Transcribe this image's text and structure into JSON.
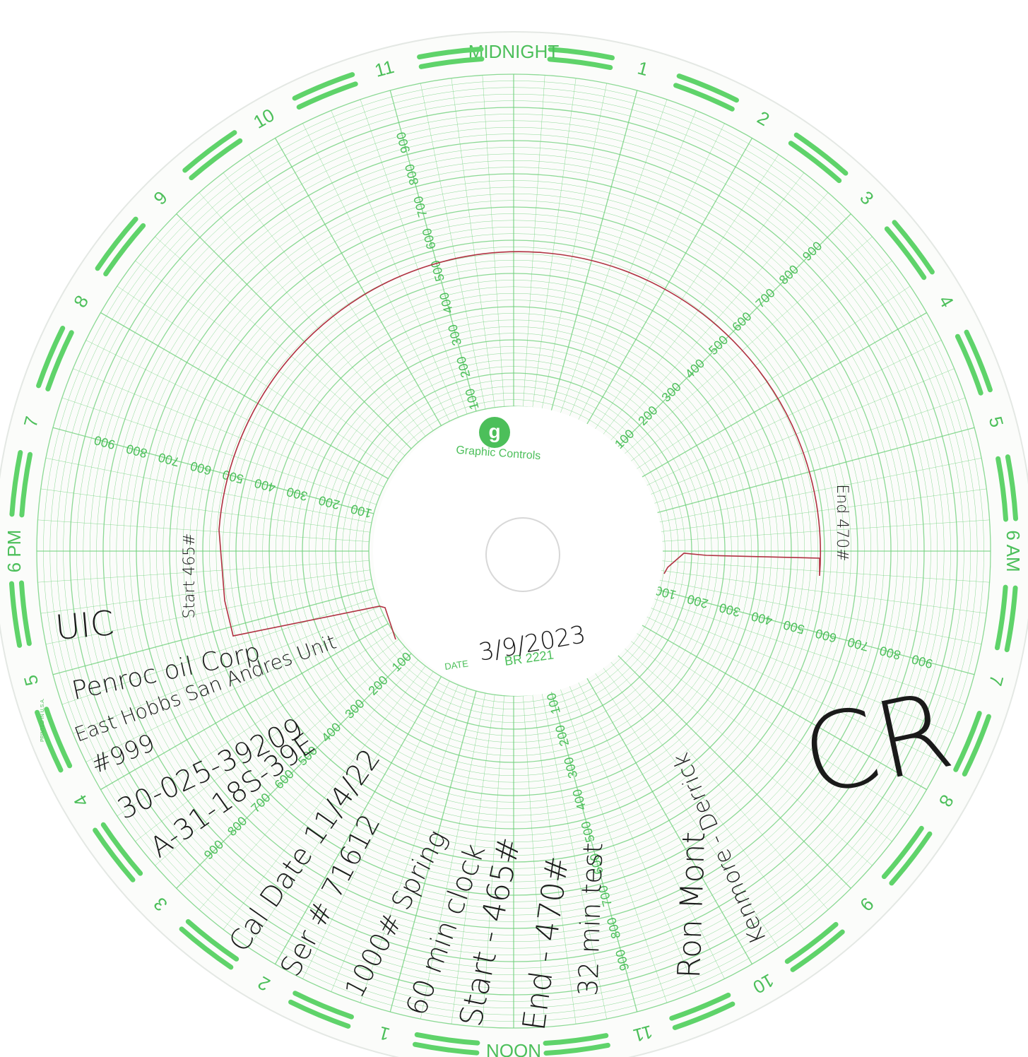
{
  "chart_paper": {
    "hour_labels": [
      "MIDNIGHT",
      "1",
      "2",
      "3",
      "4",
      "5",
      "6 AM",
      "7",
      "8",
      "9",
      "10",
      "11",
      "NOON",
      "1",
      "2",
      "3",
      "4",
      "5",
      "6 PM",
      "7",
      "8",
      "9",
      "10",
      "11"
    ],
    "scale_values": [
      100,
      200,
      300,
      400,
      500,
      600,
      700,
      800,
      900
    ],
    "brand_logo": "g",
    "brand": "Graphic Controls",
    "date_label": "DATE",
    "chart_number": "BR 2221",
    "printed_in": "PRINTED IN U.S.A."
  },
  "handwriting": {
    "date": "3/9/2023",
    "trace_start": "Start 465#",
    "trace_end": "End 470#",
    "notes": [
      "UIC",
      "Penroc oil Corp",
      "East Hobbs San Andres Unit",
      "#999",
      "30-025-39209",
      "A-31-18S-39E",
      "Cal Date 11/4/22",
      "Ser # 71612",
      "1000# Spring",
      "60 min clock",
      "Start - 465#",
      "End - 470#",
      "32 min test",
      "Ron Mont",
      "Kenmore - Derrick"
    ],
    "signature": "CR"
  }
}
